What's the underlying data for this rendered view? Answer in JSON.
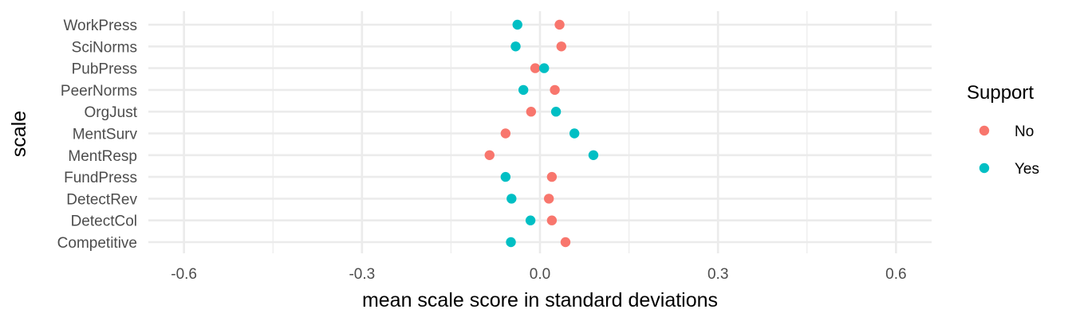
{
  "chart_data": {
    "type": "scatter",
    "title": "",
    "xlabel": "mean scale score in standard deviations",
    "ylabel": "scale",
    "xlim": [
      -0.66,
      0.66
    ],
    "x_ticks": [
      -0.6,
      -0.3,
      0.0,
      0.3,
      0.6
    ],
    "x_tick_labels": [
      "-0.6",
      "-0.3",
      "0.0",
      "0.3",
      "0.6"
    ],
    "categories": [
      "WorkPress",
      "SciNorms",
      "PubPress",
      "PeerNorms",
      "OrgJust",
      "MentSurv",
      "MentResp",
      "FundPress",
      "DetectRev",
      "DetectCol",
      "Competitive"
    ],
    "grid": true,
    "legend": {
      "title": "Support",
      "position": "right"
    },
    "series": [
      {
        "name": "No",
        "color": "#F8766D",
        "values": [
          0.033,
          0.036,
          -0.008,
          0.025,
          -0.015,
          -0.058,
          -0.085,
          0.02,
          0.015,
          0.02,
          0.043
        ]
      },
      {
        "name": "Yes",
        "color": "#00BFC4",
        "values": [
          -0.038,
          -0.041,
          0.007,
          -0.028,
          0.027,
          0.058,
          0.09,
          -0.058,
          -0.048,
          -0.016,
          -0.049
        ]
      }
    ]
  }
}
